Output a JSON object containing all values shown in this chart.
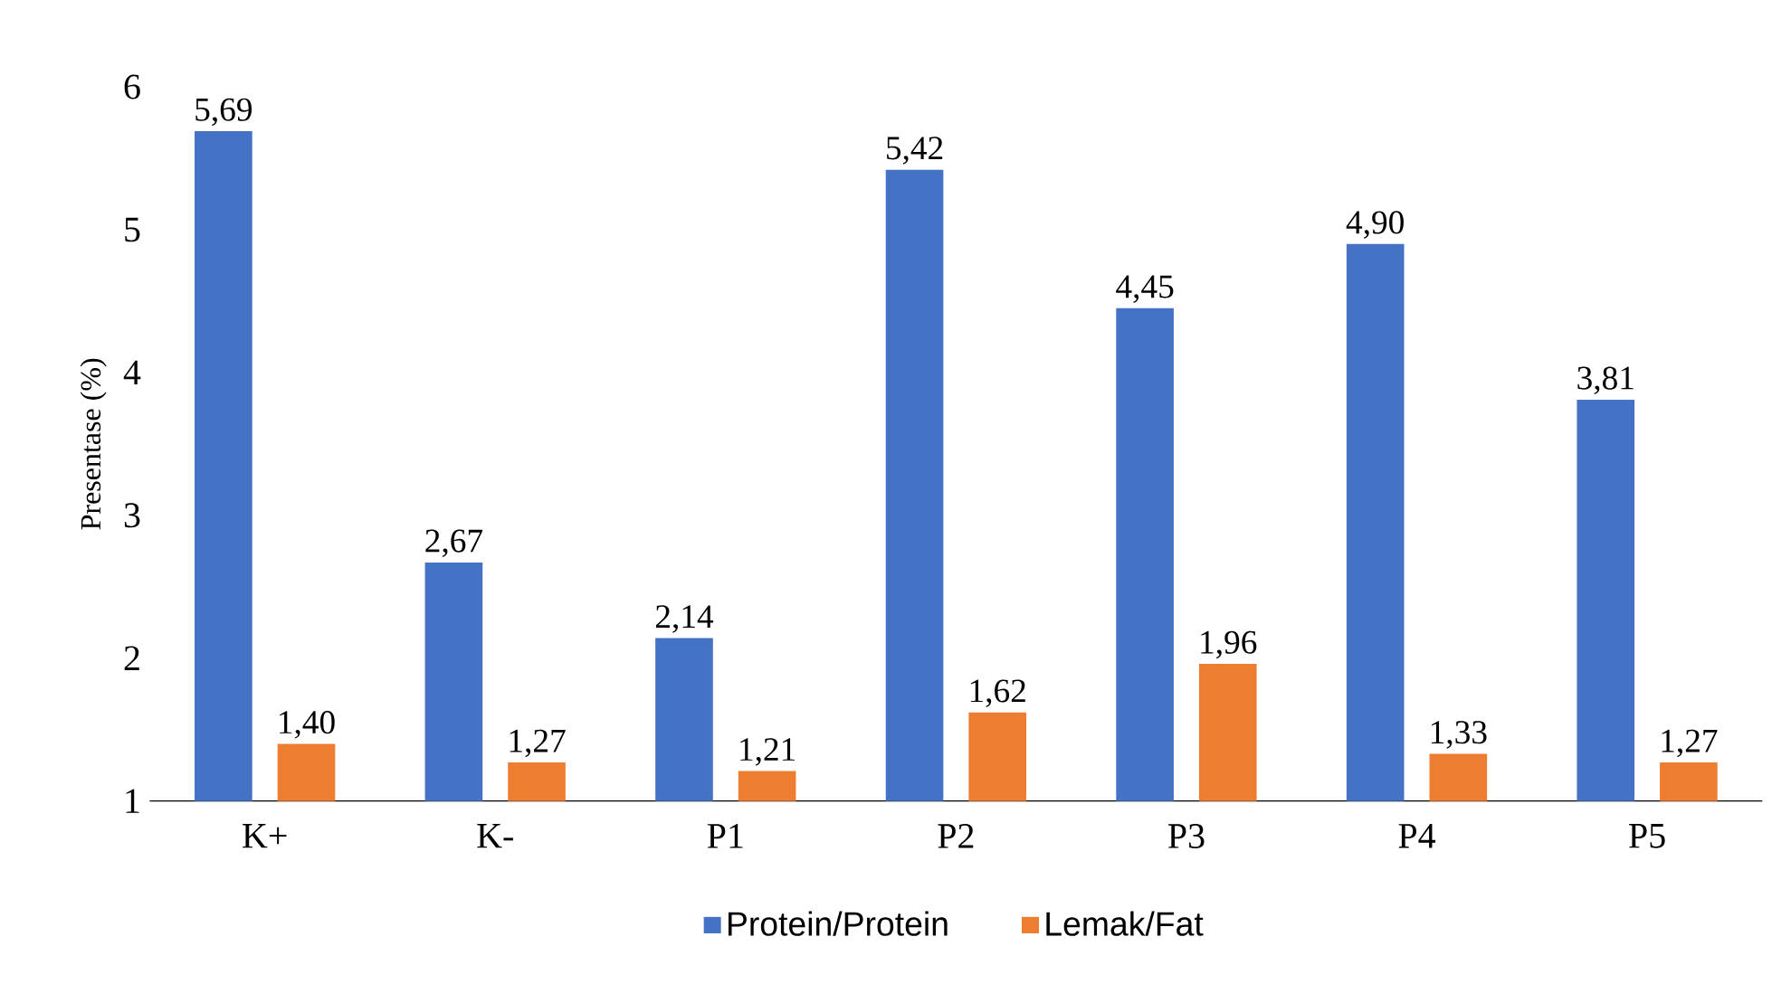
{
  "chart_data": {
    "type": "bar",
    "ylabel": "Presentase (%)",
    "categories": [
      "K+",
      "K-",
      "P1",
      "P2",
      "P3",
      "P4",
      "P5"
    ],
    "series": [
      {
        "name": "Protein/Protein",
        "color": "#4472c4",
        "values": [
          5.69,
          2.67,
          2.14,
          5.42,
          4.45,
          4.9,
          3.81
        ],
        "value_labels": [
          "5,69",
          "2,67",
          "2,14",
          "5,42",
          "4,45",
          "4,90",
          "3,81"
        ]
      },
      {
        "name": "Lemak/Fat",
        "color": "#ed7d31",
        "values": [
          1.4,
          1.27,
          1.21,
          1.62,
          1.96,
          1.33,
          1.27
        ],
        "value_labels": [
          "1,40",
          "1,27",
          "1,21",
          "1,62",
          "1,96",
          "1,33",
          "1,27"
        ]
      }
    ],
    "ylim": [
      1,
      6
    ],
    "yticks": [
      1,
      2,
      3,
      4,
      5,
      6
    ],
    "legend": "bottom"
  }
}
